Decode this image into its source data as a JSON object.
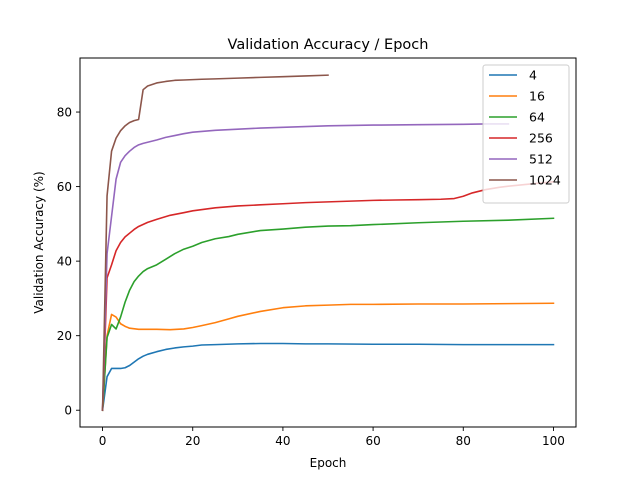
{
  "chart_data": {
    "type": "line",
    "title": "Validation Accuracy / Epoch",
    "xlabel": "Epoch",
    "ylabel": "Validation Accuracy (%)",
    "xlim": [
      -5,
      105
    ],
    "ylim": [
      -4.5,
      94.5
    ],
    "xticks": [
      0,
      20,
      40,
      60,
      80,
      100
    ],
    "yticks": [
      0,
      20,
      40,
      60,
      80
    ],
    "grid": false,
    "legend_placement": "top-right",
    "series": [
      {
        "name": "4",
        "color": "#1f77b4",
        "x": [
          0,
          1,
          2,
          3,
          4,
          5,
          6,
          7,
          8,
          9,
          10,
          12,
          14,
          16,
          18,
          20,
          22,
          25,
          30,
          35,
          40,
          45,
          50,
          60,
          70,
          80,
          90,
          100
        ],
        "y": [
          0,
          9,
          11.2,
          11.2,
          11.2,
          11.4,
          12.0,
          12.9,
          13.8,
          14.5,
          15.0,
          15.7,
          16.3,
          16.7,
          17.0,
          17.2,
          17.5,
          17.6,
          17.8,
          17.9,
          17.9,
          17.8,
          17.8,
          17.7,
          17.7,
          17.6,
          17.6,
          17.6
        ]
      },
      {
        "name": "16",
        "color": "#ff7f0e",
        "x": [
          0,
          1,
          2,
          3,
          4,
          5,
          6,
          8,
          10,
          12,
          15,
          18,
          20,
          22,
          25,
          28,
          30,
          35,
          40,
          45,
          50,
          55,
          60,
          70,
          80,
          90,
          100
        ],
        "y": [
          0,
          20,
          25.7,
          25.0,
          23.2,
          22.5,
          22.0,
          21.7,
          21.7,
          21.7,
          21.6,
          21.8,
          22.2,
          22.7,
          23.5,
          24.5,
          25.2,
          26.5,
          27.5,
          28.0,
          28.2,
          28.4,
          28.4,
          28.5,
          28.5,
          28.6,
          28.7
        ]
      },
      {
        "name": "64",
        "color": "#2ca02c",
        "x": [
          0,
          1,
          2,
          3,
          4,
          5,
          6,
          7,
          8,
          9,
          10,
          12,
          14,
          16,
          18,
          20,
          22,
          25,
          28,
          30,
          35,
          40,
          45,
          50,
          55,
          60,
          70,
          80,
          90,
          100
        ],
        "y": [
          0,
          19.5,
          23.0,
          21.8,
          25.0,
          29.0,
          32.2,
          34.5,
          36.0,
          37.2,
          38.0,
          39.0,
          40.5,
          42.0,
          43.2,
          44.0,
          45.0,
          46.0,
          46.6,
          47.2,
          48.2,
          48.6,
          49.1,
          49.4,
          49.5,
          49.8,
          50.3,
          50.7,
          51.0,
          51.5
        ]
      },
      {
        "name": "256",
        "color": "#d62728",
        "x": [
          0,
          1,
          2,
          3,
          4,
          5,
          6,
          7,
          8,
          10,
          12,
          15,
          18,
          20,
          25,
          30,
          35,
          40,
          45,
          50,
          55,
          60,
          65,
          70,
          75,
          78,
          80,
          82,
          85,
          88,
          90,
          95,
          100
        ],
        "y": [
          0,
          35.5,
          39.0,
          42.8,
          45.0,
          46.5,
          47.5,
          48.5,
          49.3,
          50.4,
          51.2,
          52.3,
          53.0,
          53.5,
          54.3,
          54.8,
          55.1,
          55.4,
          55.7,
          55.9,
          56.1,
          56.3,
          56.4,
          56.5,
          56.6,
          56.8,
          57.4,
          58.3,
          59.2,
          59.8,
          60.1,
          60.7,
          61.3
        ]
      },
      {
        "name": "512",
        "color": "#9467bd",
        "x": [
          0,
          1,
          2,
          3,
          4,
          5,
          6,
          7,
          8,
          9,
          10,
          12,
          14,
          16,
          18,
          20,
          22,
          25,
          30,
          35,
          40,
          45,
          50,
          60,
          70,
          80,
          85,
          90
        ],
        "y": [
          0,
          42.0,
          52.0,
          62.0,
          66.5,
          68.3,
          69.5,
          70.5,
          71.2,
          71.6,
          71.9,
          72.5,
          73.2,
          73.7,
          74.2,
          74.6,
          74.8,
          75.1,
          75.4,
          75.7,
          75.9,
          76.1,
          76.3,
          76.5,
          76.6,
          76.7,
          76.8,
          76.8
        ]
      },
      {
        "name": "1024",
        "color": "#8c564b",
        "x": [
          0,
          1,
          2,
          3,
          4,
          5,
          6,
          7,
          8,
          9,
          10,
          12,
          14,
          16,
          18,
          20,
          22,
          25,
          30,
          35,
          40,
          45,
          50
        ],
        "y": [
          0,
          57.5,
          69.5,
          73.0,
          75.0,
          76.3,
          77.2,
          77.7,
          78.0,
          86.0,
          87.0,
          87.8,
          88.2,
          88.5,
          88.6,
          88.7,
          88.8,
          88.9,
          89.1,
          89.3,
          89.5,
          89.7,
          89.9
        ]
      }
    ]
  }
}
